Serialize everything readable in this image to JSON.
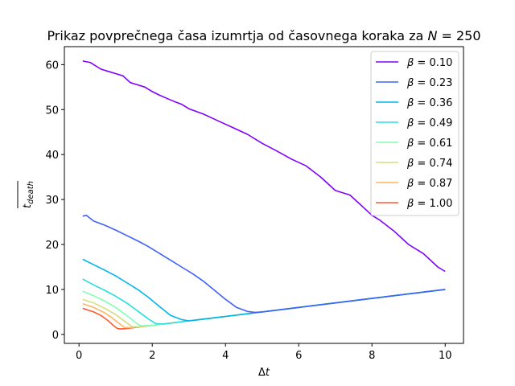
{
  "chart_data": {
    "type": "line",
    "title_text": "Prikaz povprečnega časa izumrtja od časovnega koraka za ",
    "title_var": "N",
    "title_rest": " = 250",
    "xlabel_delta": "Δ",
    "xlabel_var": "t",
    "ylabel_main": "t",
    "ylabel_sub": "death",
    "xlim": [
      -0.4,
      10.5
    ],
    "ylim": [
      -2,
      64
    ],
    "xticks": [
      0,
      2,
      4,
      6,
      8,
      10
    ],
    "yticks": [
      0,
      10,
      20,
      30,
      40,
      50,
      60
    ],
    "grid": false,
    "legend_position": "top-right",
    "legend_prefix": "β",
    "series": [
      {
        "name": "= 0.10",
        "color": "#8000ff",
        "x": [
          0.1,
          0.3,
          0.6,
          0.8,
          1.0,
          1.2,
          1.4,
          1.6,
          1.8,
          2.0,
          2.2,
          2.4,
          2.6,
          2.8,
          3.0,
          3.4,
          3.8,
          4.2,
          4.6,
          5.0,
          5.4,
          5.8,
          6.2,
          6.6,
          7.0,
          7.4,
          7.8,
          8.0,
          8.2,
          8.6,
          9.0,
          9.4,
          9.8,
          10.0
        ],
        "y": [
          60.8,
          60.5,
          59,
          58.5,
          58,
          57.5,
          56,
          55.5,
          55,
          54,
          53.2,
          52.5,
          51.8,
          51.2,
          50.2,
          49,
          47.5,
          46,
          44.5,
          42.5,
          40.8,
          39,
          37.5,
          35,
          32,
          31,
          28,
          26.5,
          25.5,
          23,
          20,
          18,
          15,
          14
        ]
      },
      {
        "name": "= 0.23",
        "color": "#4062fa",
        "x": [
          0.1,
          0.2,
          0.4,
          0.7,
          1.0,
          1.3,
          1.6,
          1.9,
          2.2,
          2.5,
          2.8,
          3.1,
          3.4,
          3.7,
          4.0,
          4.3,
          4.6,
          4.8,
          5.0,
          6.0,
          7.0,
          8.0,
          9.0,
          10.0
        ],
        "y": [
          26.3,
          26.5,
          25.2,
          24.3,
          23.2,
          22,
          20.8,
          19.5,
          18,
          16.5,
          15,
          13.5,
          11.8,
          9.8,
          7.8,
          6,
          5.1,
          4.9,
          5.0,
          6.0,
          7.0,
          8.0,
          9.0,
          10.0
        ]
      },
      {
        "name": "= 0.36",
        "color": "#00b5eb",
        "x": [
          0.1,
          0.4,
          0.7,
          1.0,
          1.3,
          1.6,
          1.9,
          2.2,
          2.5,
          2.8,
          3.0,
          3.2,
          4.0,
          6.0,
          8.0,
          10.0
        ],
        "y": [
          16.7,
          15.5,
          14.3,
          13,
          11.5,
          10,
          8.2,
          6.2,
          4.2,
          3.3,
          3.0,
          3.2,
          4.0,
          6.0,
          8.0,
          10.0
        ]
      },
      {
        "name": "= 0.49",
        "color": "#2adddd",
        "x": [
          0.1,
          0.4,
          0.7,
          1.0,
          1.3,
          1.6,
          1.9,
          2.1,
          2.3,
          3.0,
          4.0,
          6.0,
          8.0,
          10.0
        ],
        "y": [
          12.3,
          11,
          9.8,
          8.5,
          7,
          5.2,
          3.4,
          2.4,
          2.3,
          3.0,
          4.0,
          6.0,
          8.0,
          10.0
        ]
      },
      {
        "name": "= 0.61",
        "color": "#80ffb4",
        "x": [
          0.1,
          0.4,
          0.7,
          1.0,
          1.3,
          1.6,
          1.7,
          2.0,
          3.0,
          4.0,
          6.0,
          8.0,
          10.0
        ],
        "y": [
          9.6,
          8.6,
          7.4,
          6,
          4.2,
          2.3,
          1.9,
          2.0,
          3.0,
          4.0,
          6.0,
          8.0,
          10.0
        ]
      },
      {
        "name": "= 0.74",
        "color": "#d4dd80",
        "x": [
          0.1,
          0.4,
          0.7,
          1.0,
          1.3,
          1.45,
          1.6,
          2.0,
          3.0,
          4.0,
          6.0,
          8.0,
          10.0
        ],
        "y": [
          7.8,
          7,
          5.8,
          4.4,
          2.6,
          1.7,
          1.7,
          2.0,
          3.0,
          4.0,
          6.0,
          8.0,
          10.0
        ]
      },
      {
        "name": "= 0.87",
        "color": "#ffb360",
        "x": [
          0.1,
          0.4,
          0.7,
          0.9,
          1.1,
          1.25,
          1.4,
          2.0,
          3.0,
          4.0,
          6.0,
          8.0,
          10.0
        ],
        "y": [
          6.8,
          6,
          4.8,
          3.7,
          2.4,
          1.5,
          1.5,
          2.0,
          3.0,
          4.0,
          6.0,
          8.0,
          10.0
        ]
      },
      {
        "name": "= 1.00",
        "color": "#ff5930",
        "x": [
          0.1,
          0.4,
          0.6,
          0.8,
          0.95,
          1.05,
          1.15,
          1.3,
          2.0,
          3.0,
          4.0,
          6.0,
          8.0,
          10.0
        ],
        "y": [
          5.8,
          5,
          4.2,
          3,
          1.9,
          1.3,
          1.2,
          1.3,
          2.0,
          3.0,
          4.0,
          6.0,
          8.0,
          10.0
        ]
      }
    ]
  }
}
